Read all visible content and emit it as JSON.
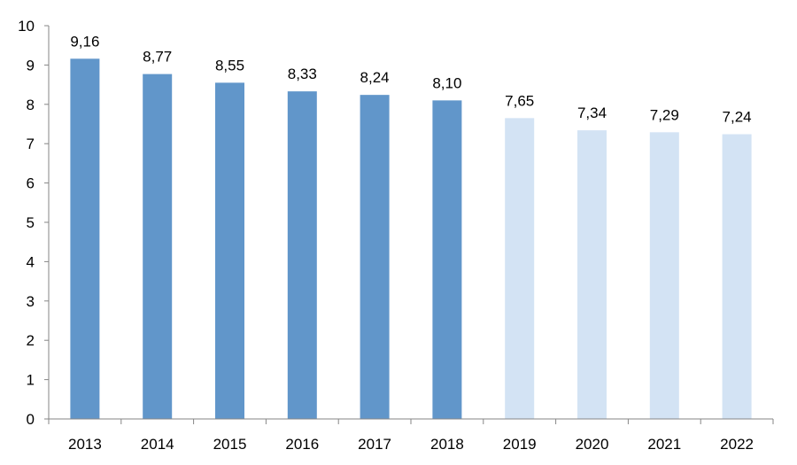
{
  "chart_data": {
    "type": "bar",
    "title": "",
    "xlabel": "",
    "ylabel": "",
    "categories": [
      "2013",
      "2014",
      "2015",
      "2016",
      "2017",
      "2018",
      "2019",
      "2020",
      "2021",
      "2022"
    ],
    "values": [
      9.16,
      8.77,
      8.55,
      8.33,
      8.24,
      8.1,
      7.65,
      7.34,
      7.29,
      7.24
    ],
    "data_labels": [
      "9,16",
      "8,77",
      "8,55",
      "8,33",
      "8,24",
      "8,10",
      "7,65",
      "7,34",
      "7,29",
      "7,24"
    ],
    "ylim": [
      0,
      10
    ],
    "yticks": [
      "0",
      "1",
      "2",
      "3",
      "4",
      "5",
      "6",
      "7",
      "8",
      "9",
      "10"
    ],
    "grid": false,
    "legend": "none",
    "colors": {
      "actual": "#6196CA",
      "forecast": "#D3E3F4",
      "axis": "#868686"
    },
    "bar_color_groups": [
      "actual",
      "actual",
      "actual",
      "actual",
      "actual",
      "actual",
      "forecast",
      "forecast",
      "forecast",
      "forecast"
    ]
  }
}
